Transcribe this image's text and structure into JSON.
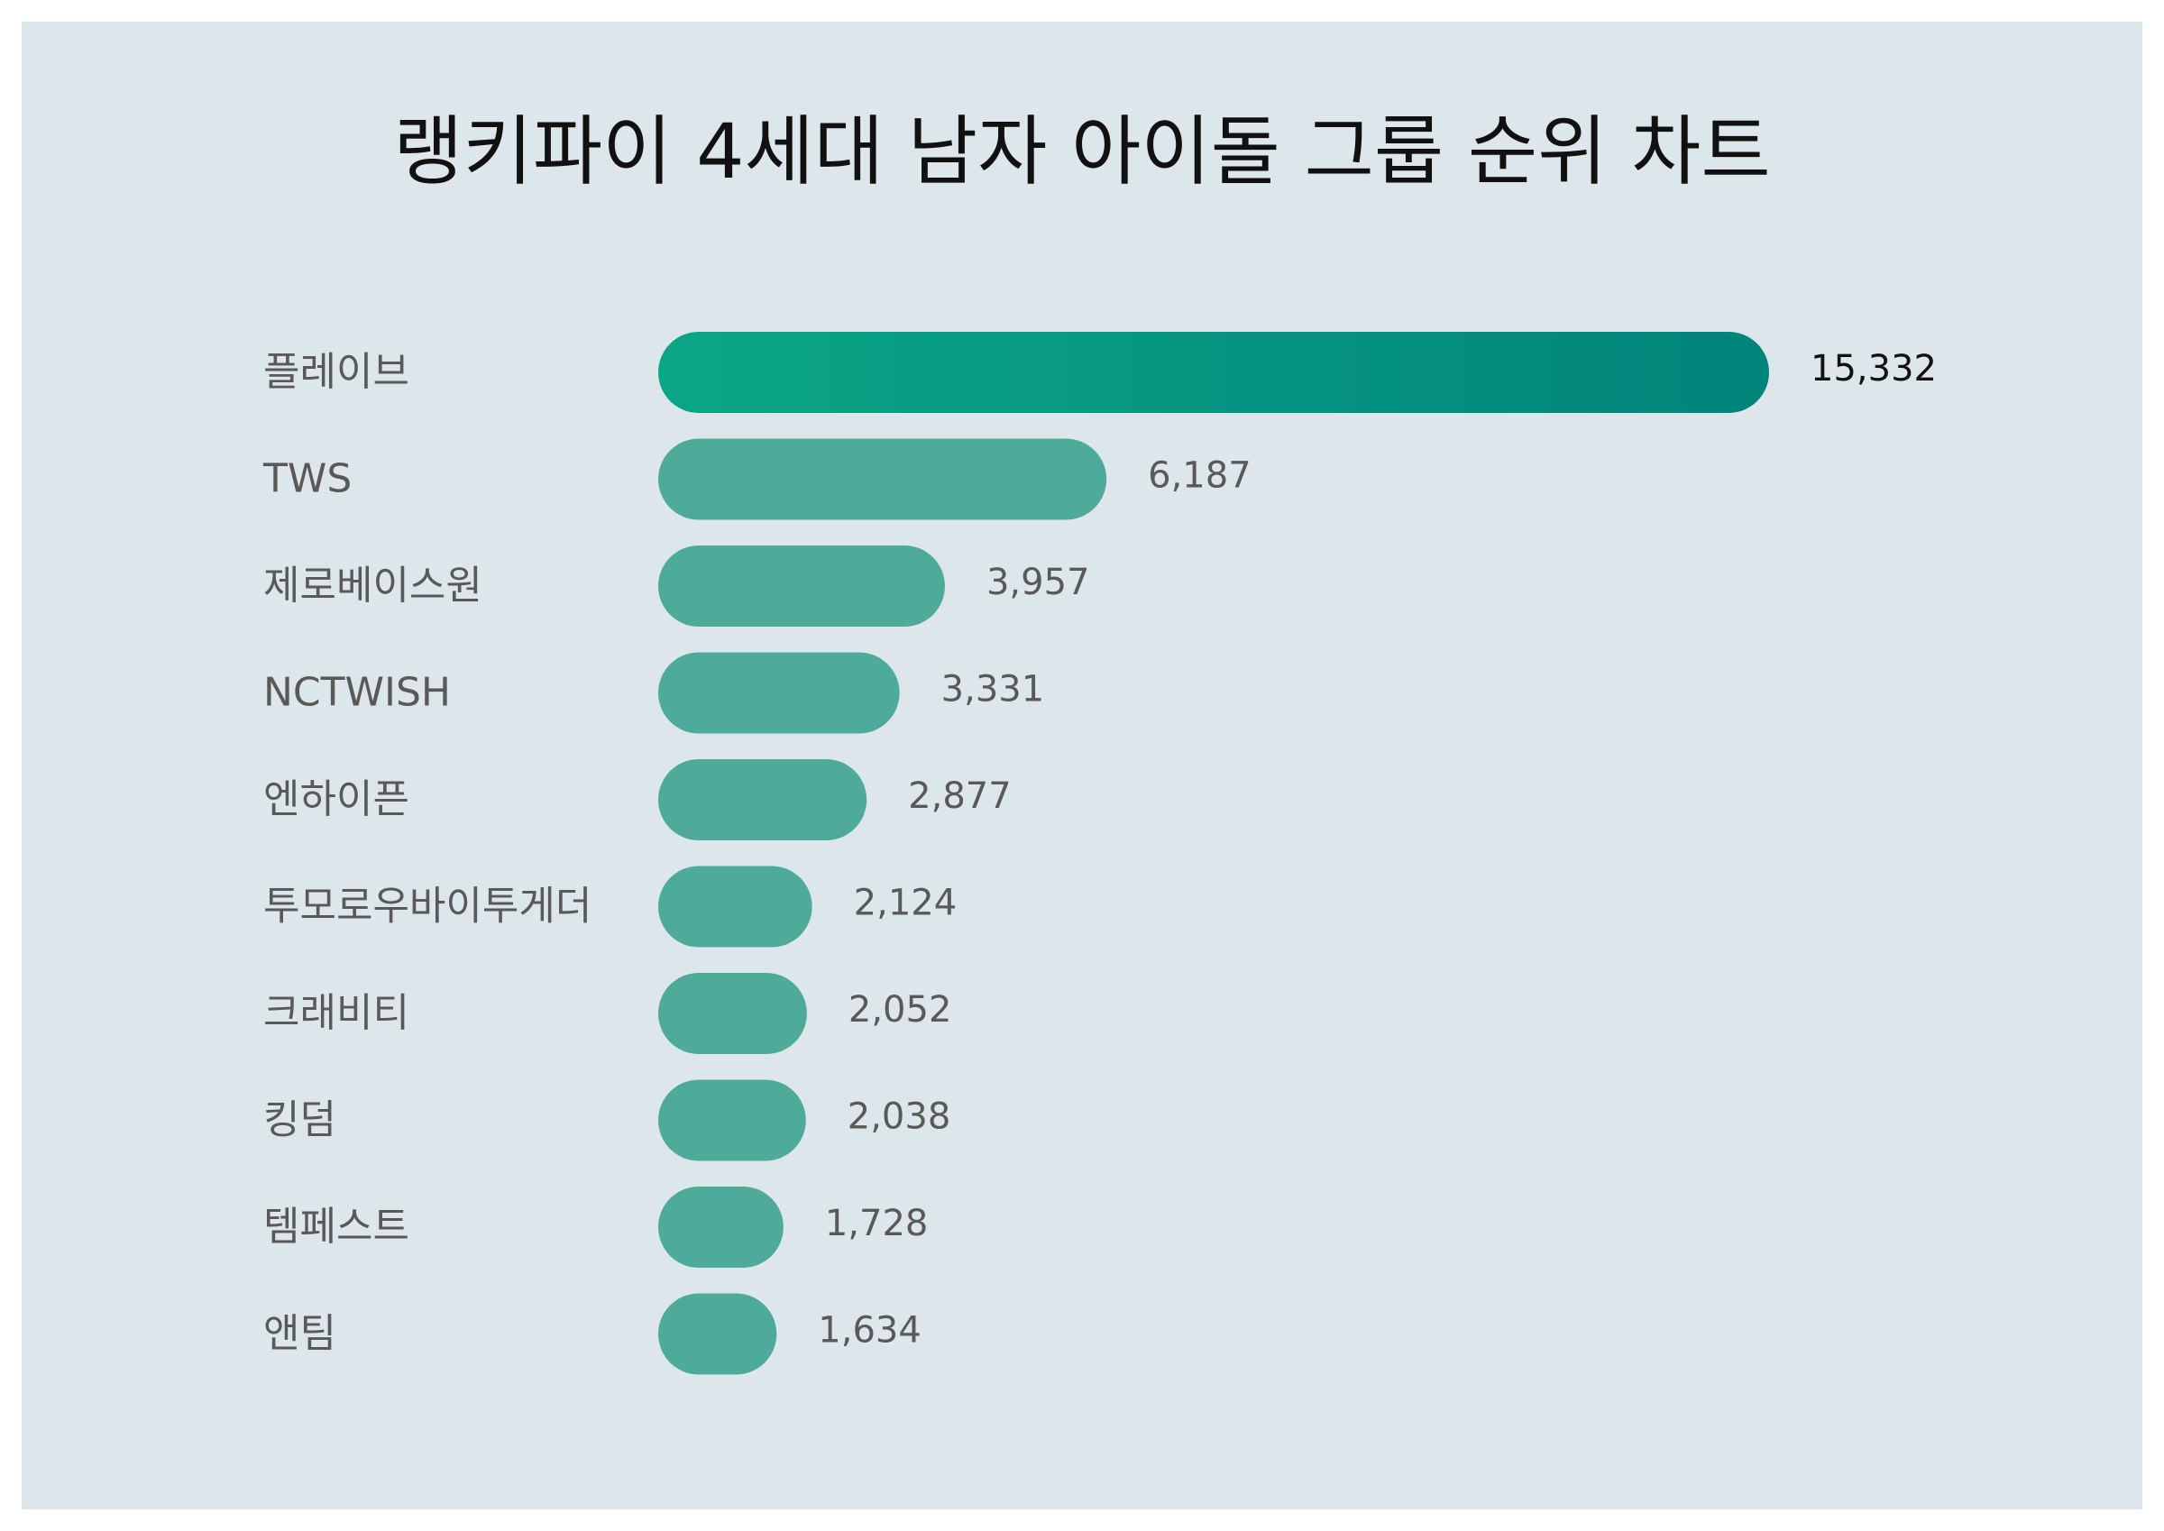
{
  "title": "랭키파이 4세대 남자 아이돌 그룹 순위 차트",
  "colors": {
    "background": "#dce6eb",
    "bar": "#4fab99",
    "top_bar_start": "#0ba686",
    "top_bar_end": "#01847a",
    "label_text": "#595959",
    "top_value_text": "#111111"
  },
  "chart_data": {
    "type": "bar",
    "orientation": "horizontal",
    "title": "랭키파이 4세대 남자 아이돌 그룹 순위 차트",
    "categories": [
      "플레이브",
      "TWS",
      "제로베이스원",
      "NCTWISH",
      "엔하이픈",
      "투모로우바이투게더",
      "크래비티",
      "킹덤",
      "템페스트",
      "앤팀"
    ],
    "values": [
      15332,
      6187,
      3957,
      3331,
      2877,
      2124,
      2052,
      2038,
      1728,
      1634
    ],
    "value_labels": [
      "15,332",
      "6,187",
      "3,957",
      "3,331",
      "2,877",
      "2,124",
      "2,052",
      "2,038",
      "1,728",
      "1,634"
    ],
    "xlabel": "",
    "ylabel": "",
    "grid": false,
    "legend": "none"
  }
}
